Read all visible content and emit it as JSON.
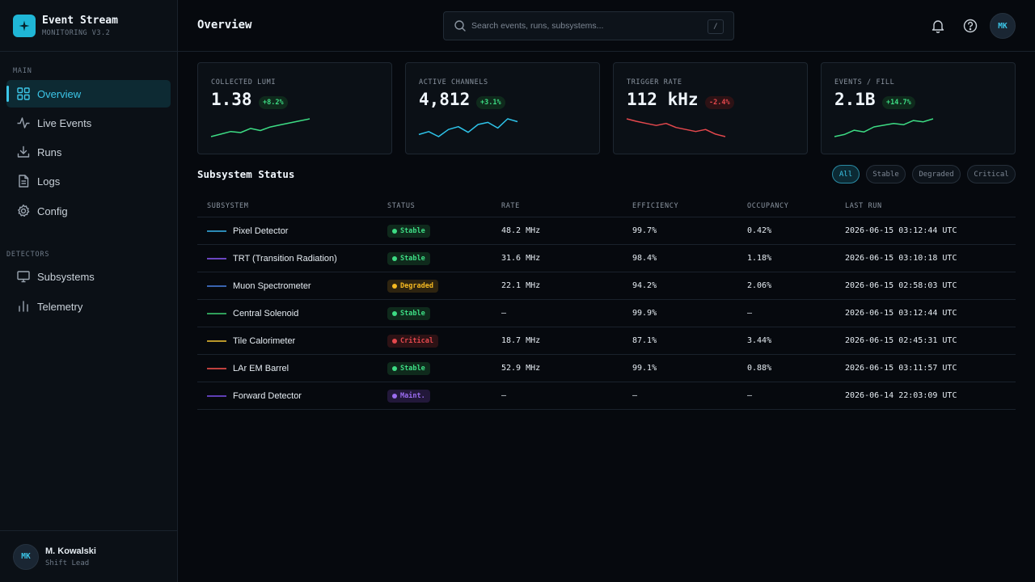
{
  "brand": {
    "title": "Event Stream",
    "subtitle": "MONITORING V3.2"
  },
  "sidebar": {
    "sections": [
      "MAIN",
      "DETECTORS"
    ],
    "items": [
      {
        "label": "Overview",
        "icon": "grid-icon"
      },
      {
        "label": "Live Events",
        "icon": "activity-icon"
      },
      {
        "label": "Runs",
        "icon": "download-icon"
      },
      {
        "label": "Logs",
        "icon": "file-icon"
      },
      {
        "label": "Config",
        "icon": "gear-icon"
      },
      {
        "label": "Subsystems",
        "icon": "monitor-icon"
      },
      {
        "label": "Telemetry",
        "icon": "bar-chart-icon"
      }
    ],
    "active_index": 0
  },
  "user": {
    "initials": "MK",
    "name": "M. Kowalski",
    "role": "Shift Lead"
  },
  "header": {
    "title": "Overview",
    "search_placeholder": "Search events, runs, subsystems...",
    "search_shortcut": "/",
    "avatar_initials": "MK"
  },
  "kpis": [
    {
      "label": "COLLECTED LUMI",
      "value": "1.38",
      "delta": "+8.2%",
      "trend": "up",
      "color": "#3ddc84",
      "spark": [
        3,
        4,
        5,
        4.6,
        6.2,
        5.4,
        6.8,
        7.6,
        8.4,
        9.2,
        10
      ]
    },
    {
      "label": "ACTIVE CHANNELS",
      "value": "4,812",
      "delta": "+3.1%",
      "trend": "up",
      "color": "#2ec4ea",
      "spark": [
        4,
        4.8,
        3.4,
        5.4,
        6.2,
        4.6,
        6.8,
        7.4,
        5.8,
        8.4,
        7.6
      ]
    },
    {
      "label": "TRIGGER RATE",
      "value": "112 kHz",
      "delta": "-2.4%",
      "trend": "down",
      "color": "#e5484d",
      "spark": [
        10,
        9,
        8.2,
        7.4,
        8.2,
        6.6,
        5.8,
        5,
        5.8,
        4,
        3
      ]
    },
    {
      "label": "EVENTS / FILL",
      "value": "2.1B",
      "delta": "+14.7%",
      "trend": "up",
      "color": "#3ddc84",
      "spark": [
        2,
        3,
        5,
        4.2,
        6.6,
        7.4,
        8.2,
        7.6,
        9.6,
        9,
        10.4
      ]
    }
  ],
  "section": {
    "title": "Subsystem Status",
    "filters": [
      "All",
      "Stable",
      "Degraded",
      "Critical"
    ],
    "active_filter": "All"
  },
  "table": {
    "columns": [
      "SUBSYSTEM",
      "STATUS",
      "RATE",
      "EFFICIENCY",
      "OCCUPANCY",
      "LAST RUN"
    ],
    "rows": [
      {
        "color": "#2b8ab6",
        "name": "Pixel Detector",
        "status": "Stable",
        "rate": "48.2 MHz",
        "efficiency": "99.7%",
        "occupancy": "0.42%",
        "last_run": "2026-06-15 03:12:44 UTC"
      },
      {
        "color": "#6b46c1",
        "name": "TRT (Transition Radiation)",
        "status": "Stable",
        "rate": "31.6 MHz",
        "efficiency": "98.4%",
        "occupancy": "1.18%",
        "last_run": "2026-06-15 03:10:18 UTC"
      },
      {
        "color": "#3a64b0",
        "name": "Muon Spectrometer",
        "status": "Degraded",
        "rate": "22.1 MHz",
        "efficiency": "94.2%",
        "occupancy": "2.06%",
        "last_run": "2026-06-15 02:58:03 UTC"
      },
      {
        "color": "#2f9e5a",
        "name": "Central Solenoid",
        "status": "Stable",
        "rate": "—",
        "efficiency": "99.9%",
        "occupancy": "—",
        "last_run": "2026-06-15 03:12:44 UTC"
      },
      {
        "color": "#b9962a",
        "name": "Tile Calorimeter",
        "status": "Critical",
        "rate": "18.7 MHz",
        "efficiency": "87.1%",
        "occupancy": "3.44%",
        "last_run": "2026-06-15 02:45:31 UTC"
      },
      {
        "color": "#c0413e",
        "name": "LAr EM Barrel",
        "status": "Stable",
        "rate": "52.9 MHz",
        "efficiency": "99.1%",
        "occupancy": "0.88%",
        "last_run": "2026-06-15 03:11:57 UTC"
      },
      {
        "color": "#5f3fb5",
        "name": "Forward Detector",
        "status": "Maint.",
        "rate": "—",
        "efficiency": "—",
        "occupancy": "—",
        "last_run": "2026-06-14 22:03:09 UTC"
      }
    ]
  },
  "status_colors": {
    "Stable": {
      "bg": "#0f2a1c",
      "fg": "#3ddc84"
    },
    "Degraded": {
      "bg": "#2e2410",
      "fg": "#f5b921"
    },
    "Critical": {
      "bg": "#2d1215",
      "fg": "#e5484d"
    },
    "Maint.": {
      "bg": "#22183a",
      "fg": "#9b6cf0"
    }
  }
}
